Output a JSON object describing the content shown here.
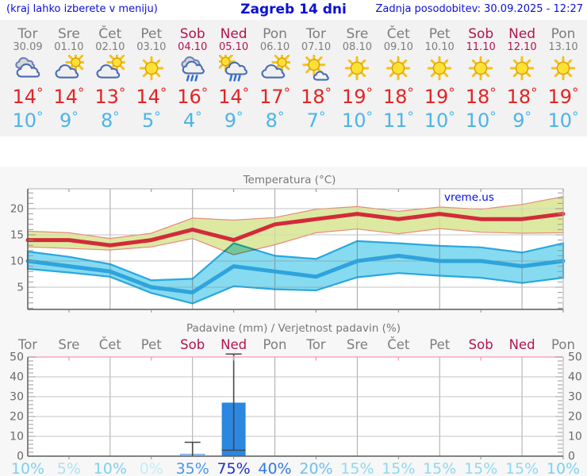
{
  "header": {
    "left_note": "(kraj lahko izberete v meniju)",
    "title": "Zagreb 14 dni",
    "updated": "Zadnja posodobitev: 30.09.2025 - 12:27"
  },
  "colors": {
    "header_text": "#0b10d8",
    "weekday": "#7d7d7d",
    "weekend": "#b3134e",
    "tmax": "#e32424",
    "tmin": "#4cb4e7",
    "panel_bg": "#f2f2f2",
    "section_bg": "#f7f7f7"
  },
  "days": [
    {
      "name": "Tor",
      "date": "30.09",
      "icon": "cloudy",
      "tmax": 14,
      "tmin": 10,
      "weekend": false
    },
    {
      "name": "Sre",
      "date": "01.10",
      "icon": "sun-cloud",
      "tmax": 14,
      "tmin": 9,
      "weekend": false
    },
    {
      "name": "Čet",
      "date": "02.10",
      "icon": "sun-cloud",
      "tmax": 13,
      "tmin": 8,
      "weekend": false
    },
    {
      "name": "Pet",
      "date": "03.10",
      "icon": "sunny",
      "tmax": 14,
      "tmin": 5,
      "weekend": false
    },
    {
      "name": "Sob",
      "date": "04.10",
      "icon": "rain",
      "tmax": 16,
      "tmin": 4,
      "weekend": true
    },
    {
      "name": "Ned",
      "date": "05.10",
      "icon": "sun-rain",
      "tmax": 14,
      "tmin": 9,
      "weekend": true
    },
    {
      "name": "Pon",
      "date": "06.10",
      "icon": "sun-cloud",
      "tmax": 17,
      "tmin": 8,
      "weekend": false
    },
    {
      "name": "Tor",
      "date": "07.10",
      "icon": "sun-small-cloud",
      "tmax": 18,
      "tmin": 7,
      "weekend": false
    },
    {
      "name": "Sre",
      "date": "08.10",
      "icon": "sunny",
      "tmax": 19,
      "tmin": 10,
      "weekend": false
    },
    {
      "name": "Čet",
      "date": "09.10",
      "icon": "sunny",
      "tmax": 18,
      "tmin": 11,
      "weekend": false
    },
    {
      "name": "Pet",
      "date": "10.10",
      "icon": "sunny",
      "tmax": 19,
      "tmin": 10,
      "weekend": false
    },
    {
      "name": "Sob",
      "date": "11.10",
      "icon": "sunny",
      "tmax": 18,
      "tmin": 10,
      "weekend": true
    },
    {
      "name": "Ned",
      "date": "12.10",
      "icon": "sunny",
      "tmax": 18,
      "tmin": 9,
      "weekend": true
    },
    {
      "name": "Pon",
      "date": "13.10",
      "icon": "sunny",
      "tmax": 19,
      "tmin": 10,
      "weekend": false
    }
  ],
  "chart_data": [
    {
      "type": "line",
      "title": "Temperatura (°C)",
      "watermark": "vreme.us",
      "x_labels": [
        "Tor",
        "Sre",
        "Čet",
        "Pet",
        "Sob",
        "Ned",
        "Pon",
        "Tor",
        "Sre",
        "Čet",
        "Pet",
        "Sob",
        "Ned",
        "Pon"
      ],
      "ylim": [
        0.8,
        23.8
      ],
      "yticks": [
        5,
        10,
        15,
        20
      ],
      "grid": true,
      "series": [
        {
          "name": "max temperature",
          "color": "#d22b3a",
          "band_fill": "#dde9a1",
          "band_edge": "#e98a7a",
          "values": [
            14,
            14,
            13,
            14,
            16,
            14,
            17,
            18,
            19,
            18,
            19,
            18,
            18,
            19
          ],
          "band_hi": [
            15.7,
            15.4,
            14.3,
            15.3,
            18.2,
            17.8,
            18.3,
            19.9,
            20.4,
            19.5,
            20.3,
            19.9,
            20.8,
            22.3
          ],
          "band_lo": [
            12.7,
            12.4,
            12.1,
            12.7,
            14.3,
            11.2,
            13.1,
            15.4,
            16.1,
            15.2,
            16.2,
            15.5,
            15.3,
            15.4
          ]
        },
        {
          "name": "min temperature",
          "color": "#2fa3dc",
          "band_fill": "#86dbf0",
          "band_edge": "#2aa7e0",
          "values": [
            10,
            9,
            8,
            5,
            4,
            9,
            8,
            7,
            10,
            11,
            10,
            10,
            9,
            10
          ],
          "band_hi": [
            11.8,
            10.8,
            9.4,
            6.3,
            6.6,
            13.4,
            11.0,
            10.4,
            13.8,
            13.4,
            12.9,
            12.6,
            11.6,
            13.4
          ],
          "band_lo": [
            8.5,
            7.8,
            7.0,
            3.9,
            1.9,
            5.2,
            4.6,
            4.4,
            6.9,
            7.7,
            7.2,
            6.8,
            5.8,
            6.8
          ]
        }
      ]
    },
    {
      "type": "bar",
      "title": "Padavine (mm) / Verjetnost padavin (%)",
      "categories": [
        "Tor",
        "Sre",
        "Čet",
        "Pet",
        "Sob",
        "Ned",
        "Pon",
        "Tor",
        "Sre",
        "Čet",
        "Pet",
        "Sob",
        "Ned",
        "Pon"
      ],
      "values": [
        0,
        0,
        0,
        0,
        1,
        27,
        0,
        0,
        0,
        0,
        0,
        0,
        0,
        0
      ],
      "whisker_lo": [
        null,
        null,
        null,
        null,
        0,
        3,
        null,
        null,
        null,
        null,
        null,
        null,
        null,
        null
      ],
      "whisker_hi": [
        null,
        null,
        null,
        null,
        7,
        51.5,
        null,
        null,
        null,
        null,
        null,
        null,
        null,
        null
      ],
      "bar_color": "#2b87e0",
      "bar_fills": [
        null,
        null,
        null,
        null,
        "#b9d7f3",
        "#2b87e0",
        null,
        null,
        null,
        null,
        null,
        null,
        null,
        null
      ],
      "bar_light_stroke": "#69a5dc",
      "whisker_color": "#474747",
      "ylim": [
        0,
        50
      ],
      "yticks": [
        0,
        10,
        20,
        30,
        40,
        50
      ],
      "probabilities": [
        {
          "label": "10%",
          "color": "#7ed0ef"
        },
        {
          "label": "5%",
          "color": "#a8e2f5"
        },
        {
          "label": "10%",
          "color": "#7ed0ef"
        },
        {
          "label": "0%",
          "color": "#c4ecf8"
        },
        {
          "label": "35%",
          "color": "#4b96e6"
        },
        {
          "label": "75%",
          "color": "#2030c8"
        },
        {
          "label": "40%",
          "color": "#3379dd"
        },
        {
          "label": "20%",
          "color": "#6cc0ee"
        },
        {
          "label": "15%",
          "color": "#8fd8f1"
        },
        {
          "label": "15%",
          "color": "#8fd8f1"
        },
        {
          "label": "15%",
          "color": "#8fd8f1"
        },
        {
          "label": "15%",
          "color": "#8fd8f1"
        },
        {
          "label": "15%",
          "color": "#8fd8f1"
        },
        {
          "label": "10%",
          "color": "#7ed0ef"
        }
      ]
    }
  ]
}
